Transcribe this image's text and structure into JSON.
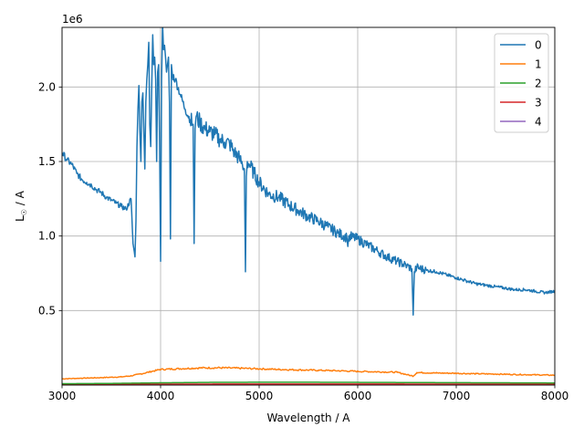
{
  "chart_data": {
    "type": "line",
    "xlabel": "Wavelength / A",
    "ylabel": "L☉ / A",
    "ylabel_main": "L",
    "ylabel_sub": "☉",
    "ylabel_rest": " / A",
    "y_offset_text": "1e6",
    "xlim": [
      3000,
      8000
    ],
    "ylim": [
      0,
      2400000
    ],
    "grid": true,
    "legend_position": "top-right",
    "x_ticks": [
      {
        "value": 3000,
        "label": "3000"
      },
      {
        "value": 4000,
        "label": "4000"
      },
      {
        "value": 5000,
        "label": "5000"
      },
      {
        "value": 6000,
        "label": "6000"
      },
      {
        "value": 7000,
        "label": "7000"
      },
      {
        "value": 8000,
        "label": "8000"
      }
    ],
    "y_ticks": [
      {
        "value": 500000,
        "label": "0.5"
      },
      {
        "value": 1000000,
        "label": "1.0"
      },
      {
        "value": 1500000,
        "label": "1.5"
      },
      {
        "value": 2000000,
        "label": "2.0"
      }
    ],
    "series": [
      {
        "name": "0",
        "color": "#1f77b4",
        "x": [
          3000,
          3050,
          3100,
          3150,
          3200,
          3250,
          3300,
          3350,
          3400,
          3450,
          3500,
          3550,
          3600,
          3650,
          3700,
          3720,
          3740,
          3750,
          3760,
          3770,
          3780,
          3790,
          3800,
          3810,
          3820,
          3830,
          3840,
          3850,
          3860,
          3870,
          3880,
          3890,
          3900,
          3910,
          3920,
          3930,
          3940,
          3950,
          3960,
          3970,
          3980,
          3990,
          4000,
          4010,
          4020,
          4030,
          4040,
          4050,
          4060,
          4070,
          4080,
          4090,
          4100,
          4110,
          4120,
          4150,
          4200,
          4250,
          4300,
          4330,
          4340,
          4350,
          4360,
          4400,
          4450,
          4500,
          4550,
          4600,
          4650,
          4700,
          4750,
          4800,
          4830,
          4850,
          4861,
          4870,
          4880,
          4900,
          4950,
          5000,
          5100,
          5200,
          5300,
          5400,
          5500,
          5600,
          5700,
          5800,
          5890,
          5900,
          5910,
          6000,
          6100,
          6200,
          6300,
          6400,
          6500,
          6550,
          6563,
          6575,
          6600,
          6700,
          6800,
          6900,
          7000,
          7100,
          7200,
          7300,
          7400,
          7500,
          7600,
          7700,
          7800,
          7900,
          8000
        ],
        "values": [
          1560000,
          1510000,
          1480000,
          1420000,
          1380000,
          1360000,
          1340000,
          1310000,
          1290000,
          1260000,
          1240000,
          1220000,
          1200000,
          1180000,
          1250000,
          950000,
          860000,
          1100000,
          1600000,
          1850000,
          2010000,
          1700000,
          1500000,
          1900000,
          1960000,
          1700000,
          1450000,
          1900000,
          2050000,
          2150000,
          2300000,
          1750000,
          1600000,
          2000000,
          2350000,
          2150000,
          2200000,
          2050000,
          1500000,
          2100000,
          2150000,
          1600000,
          830000,
          2050000,
          2420000,
          2250000,
          2280000,
          2200000,
          2100000,
          2150000,
          2200000,
          1900000,
          980000,
          2150000,
          2080000,
          2050000,
          1950000,
          1850000,
          1780000,
          1750000,
          950000,
          1720000,
          1800000,
          1760000,
          1720000,
          1700000,
          1680000,
          1650000,
          1630000,
          1620000,
          1560000,
          1520000,
          1480000,
          1450000,
          760000,
          1400000,
          1500000,
          1480000,
          1420000,
          1360000,
          1280000,
          1260000,
          1210000,
          1170000,
          1130000,
          1100000,
          1060000,
          1020000,
          990000,
          930000,
          1000000,
          980000,
          940000,
          900000,
          860000,
          830000,
          800000,
          780000,
          470000,
          760000,
          790000,
          770000,
          760000,
          740000,
          720000,
          700000,
          680000,
          670000,
          660000,
          650000,
          640000,
          640000,
          630000,
          620000,
          630000
        ]
      },
      {
        "name": "1",
        "color": "#ff7f0e",
        "x": [
          3000,
          3200,
          3400,
          3600,
          3700,
          3800,
          3900,
          4000,
          4200,
          4400,
          4600,
          4800,
          5000,
          5200,
          5400,
          5600,
          5800,
          6000,
          6200,
          6400,
          6563,
          6600,
          6800,
          7000,
          7200,
          7400,
          7600,
          7800,
          8000
        ],
        "values": [
          42000,
          46000,
          50000,
          55000,
          62000,
          75000,
          90000,
          105000,
          110000,
          115000,
          116000,
          113000,
          109000,
          105000,
          102000,
          99000,
          96000,
          92000,
          89000,
          86000,
          60000,
          84000,
          81000,
          79000,
          76000,
          74000,
          71000,
          69000,
          66000
        ]
      },
      {
        "name": "2",
        "color": "#2ca02c",
        "x": [
          3000,
          3500,
          4000,
          4500,
          5000,
          5500,
          6000,
          6500,
          7000,
          7500,
          8000
        ],
        "values": [
          9000,
          11000,
          15000,
          18000,
          19000,
          19000,
          18000,
          17000,
          16000,
          15000,
          14000
        ]
      },
      {
        "name": "3",
        "color": "#d62728",
        "x": [
          3000,
          4000,
          5000,
          6000,
          7000,
          8000
        ],
        "values": [
          5000,
          6000,
          7000,
          7000,
          6000,
          6000
        ]
      },
      {
        "name": "4",
        "color": "#9467bd",
        "x": [
          3000,
          4000,
          5000,
          6000,
          7000,
          8000
        ],
        "values": [
          2000,
          2500,
          3000,
          3000,
          2500,
          2500
        ]
      }
    ]
  }
}
